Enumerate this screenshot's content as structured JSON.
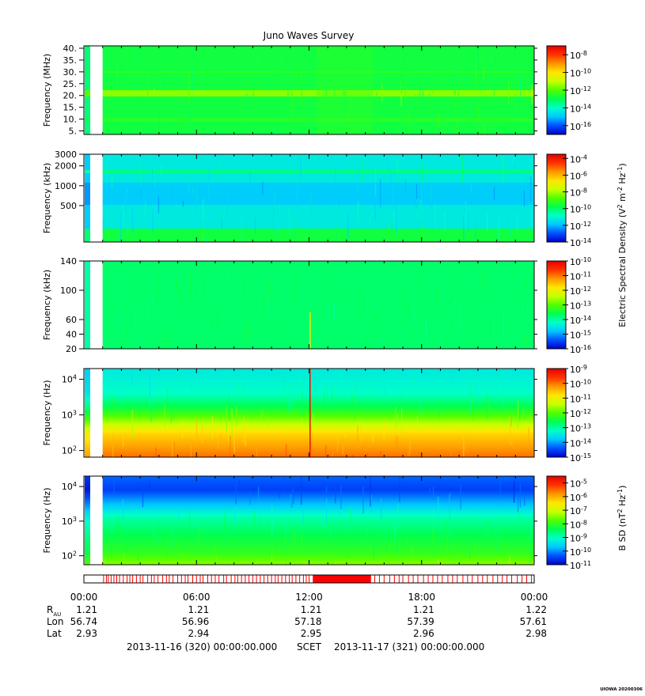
{
  "title": "Juno Waves Survey",
  "footer": {
    "start": "2013-11-16 (320) 00:00:00.000",
    "scet": "SCET",
    "end": "2013-11-17 (321) 00:00:00.000",
    "credit": "UIOWA 20200306"
  },
  "ephemeris": {
    "labels": [
      "R",
      "Lon",
      "Lat"
    ],
    "r_subscript": "AU",
    "times": [
      "00:00",
      "06:00",
      "12:00",
      "18:00",
      "00:00"
    ],
    "R": [
      "1.21",
      "1.21",
      "1.21",
      "1.21",
      "1.22"
    ],
    "Lon": [
      "56.74",
      "56.96",
      "57.18",
      "57.39",
      "57.61"
    ],
    "Lat": [
      "2.93",
      "2.94",
      "2.95",
      "2.96",
      "2.98"
    ]
  },
  "colors": {
    "colormap": [
      "#0000c8",
      "#0050ff",
      "#00c8ff",
      "#00ffc8",
      "#00ff50",
      "#50ff00",
      "#c8ff00",
      "#ffe600",
      "#ff9600",
      "#ff3200",
      "#e60000"
    ],
    "event_bar": "#ff0000"
  },
  "chart_data": [
    {
      "type": "heatmap",
      "ylabel": "Frequency (MHz)",
      "y_scale": "linear",
      "ylim": [
        3.5,
        41
      ],
      "y_ticks": [
        {
          "value": 40,
          "label": "40."
        },
        {
          "value": 35,
          "label": "35."
        },
        {
          "value": 30,
          "label": "30."
        },
        {
          "value": 25,
          "label": "25."
        },
        {
          "value": 20,
          "label": "20."
        },
        {
          "value": 15,
          "label": "15."
        },
        {
          "value": 10,
          "label": "10."
        },
        {
          "value": 5,
          "label": "5."
        }
      ],
      "colorbar": {
        "labels": [
          "10-8",
          "10-10",
          "10-12",
          "10-14",
          "10-16"
        ],
        "exponents": [
          -8,
          -10,
          -12,
          -14,
          -16
        ],
        "range": [
          -17,
          -7
        ]
      },
      "base_level": 0.42,
      "features": [
        {
          "kind": "hband",
          "y": 21,
          "width": 1.2,
          "level": 0.55
        },
        {
          "kind": "hband",
          "y": 9.5,
          "width": 0.5,
          "level": 0.46
        },
        {
          "kind": "hband",
          "y": 30,
          "width": 0.6,
          "level": 0.46
        },
        {
          "kind": "vband",
          "t0": 12.4,
          "t1": 15.4,
          "level": 0.46
        }
      ]
    },
    {
      "type": "heatmap",
      "ylabel": "Frequency (kHz)",
      "y_scale": "log",
      "ylim": [
        140,
        3000
      ],
      "y_ticks": [
        {
          "value": 3000,
          "label": "3000"
        },
        {
          "value": 2000,
          "label": "2000"
        },
        {
          "value": 1000,
          "label": "1000"
        },
        {
          "value": 500,
          "label": "500"
        }
      ],
      "colorbar": {
        "labels": [
          "10-4",
          "10-6",
          "10-8",
          "10-10",
          "10-12",
          "10-14"
        ],
        "exponents": [
          -4,
          -6,
          -8,
          -10,
          -12,
          -14
        ],
        "range": [
          -14,
          -3.5
        ]
      },
      "base_level": 0.26,
      "features": [
        {
          "kind": "hband",
          "y": 1650,
          "width": 120,
          "level": 0.36
        },
        {
          "kind": "hband",
          "y": 800,
          "width": 300,
          "level": 0.21
        },
        {
          "kind": "hband",
          "y": 170,
          "width": 50,
          "level": 0.42
        }
      ]
    },
    {
      "type": "heatmap",
      "ylabel": "Frequency (kHz)",
      "y_scale": "linear",
      "ylim": [
        20,
        140
      ],
      "y_ticks": [
        {
          "value": 140,
          "label": "140"
        },
        {
          "value": 100,
          "label": "100"
        },
        {
          "value": 60,
          "label": "60"
        },
        {
          "value": 40,
          "label": "40"
        },
        {
          "value": 20,
          "label": "20"
        }
      ],
      "colorbar": {
        "labels": [
          "10-10",
          "10-11",
          "10-12",
          "10-13",
          "10-14",
          "10-15",
          "10-16"
        ],
        "exponents": [
          -10,
          -11,
          -12,
          -13,
          -14,
          -15,
          -16
        ],
        "range": [
          -16,
          -10
        ]
      },
      "base_level": 0.38,
      "features": [
        {
          "kind": "vline",
          "t": 12.02,
          "y0": 20,
          "y1": 70,
          "level": 0.7
        }
      ]
    },
    {
      "type": "heatmap",
      "ylabel": "Frequency (Hz)",
      "y_scale": "log",
      "ylim": [
        65,
        20000
      ],
      "y_ticks": [
        {
          "value": 10000,
          "label": "10^4"
        },
        {
          "value": 1000,
          "label": "10^3"
        },
        {
          "value": 100,
          "label": "10^2"
        }
      ],
      "colorbar": {
        "labels": [
          "10-9",
          "10-10",
          "10-11",
          "10-12",
          "10-13",
          "10-14",
          "10-15"
        ],
        "exponents": [
          -9,
          -10,
          -11,
          -12,
          -13,
          -14,
          -15
        ],
        "range": [
          -15,
          -9
        ]
      },
      "base_level": 0.27,
      "gradient": [
        {
          "y": 20000,
          "level": 0.26
        },
        {
          "y": 4000,
          "level": 0.3
        },
        {
          "y": 1500,
          "level": 0.42
        },
        {
          "y": 700,
          "level": 0.55
        },
        {
          "y": 300,
          "level": 0.72
        },
        {
          "y": 65,
          "level": 0.84
        }
      ],
      "features": [
        {
          "kind": "vline",
          "t": 12.02,
          "y0": 65,
          "y1": 20000,
          "level": 0.95
        }
      ]
    },
    {
      "type": "heatmap",
      "ylabel": "Frequency (Hz)",
      "y_scale": "log",
      "ylim": [
        55,
        20000
      ],
      "y_ticks": [
        {
          "value": 10000,
          "label": "10^4"
        },
        {
          "value": 1000,
          "label": "10^3"
        },
        {
          "value": 100,
          "label": "10^2"
        }
      ],
      "colorbar": {
        "labels": [
          "10-5",
          "10-6",
          "10-7",
          "10-8",
          "10-9",
          "10-10",
          "10-11"
        ],
        "exponents": [
          -5,
          -6,
          -7,
          -8,
          -9,
          -10,
          -11
        ],
        "range": [
          -11,
          -4.5
        ]
      },
      "base_level": 0.1,
      "gradient": [
        {
          "y": 20000,
          "level": 0.12
        },
        {
          "y": 8000,
          "level": 0.08
        },
        {
          "y": 3000,
          "level": 0.2
        },
        {
          "y": 1200,
          "level": 0.33
        },
        {
          "y": 400,
          "level": 0.4
        },
        {
          "y": 120,
          "level": 0.46
        },
        {
          "y": 55,
          "level": 0.55
        }
      ],
      "features": []
    }
  ],
  "x_axis": {
    "range_hours": [
      0,
      24
    ],
    "data_start_hour": 1.0
  },
  "colorbar_titles": [
    {
      "label": "Electric Spectral Density (V2 m-2 Hz-1)"
    },
    {
      "label": "B SD (nT2 Hz-1)"
    }
  ],
  "event_bar": {
    "dense_intervals": [
      [
        12.2,
        15.3
      ]
    ],
    "sparse_ticks": [
      1.05,
      1.2,
      1.3,
      1.45,
      1.6,
      1.75,
      1.9,
      2.1,
      2.3,
      2.45,
      2.6,
      2.8,
      3.0,
      3.15,
      3.4,
      3.6,
      3.75,
      3.95,
      4.2,
      4.4,
      4.55,
      4.75,
      5.0,
      5.2,
      5.4,
      5.55,
      5.8,
      6.0,
      6.2,
      6.35,
      6.6,
      6.8,
      7.0,
      7.2,
      7.45,
      7.6,
      7.85,
      8.05,
      8.2,
      8.4,
      8.6,
      8.8,
      9.0,
      9.2,
      9.4,
      9.6,
      9.8,
      10.0,
      10.2,
      10.35,
      10.55,
      10.75,
      10.95,
      11.1,
      11.3,
      11.5,
      11.7,
      11.85,
      12.0,
      15.5,
      15.75,
      16.0,
      16.3,
      16.55,
      16.8,
      17.0,
      17.3,
      17.55,
      17.8,
      18.1,
      18.35,
      18.6,
      18.85,
      19.1,
      19.4,
      19.65,
      19.9,
      20.2,
      20.45,
      20.7,
      21.0,
      21.25,
      21.5,
      21.8,
      22.05,
      22.3,
      22.55,
      22.8,
      23.1,
      23.35,
      23.6,
      23.85
    ]
  }
}
